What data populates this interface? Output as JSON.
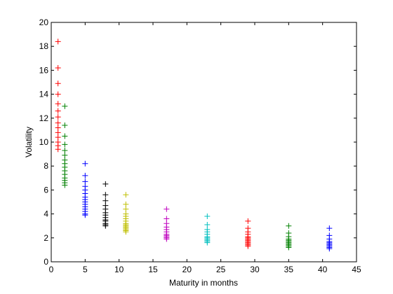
{
  "chart_data": {
    "type": "scatter",
    "xlabel": "Maturity in months",
    "ylabel": "Volatility",
    "xlim": [
      0,
      45
    ],
    "ylim": [
      0,
      20
    ],
    "xticks": [
      0,
      5,
      10,
      15,
      20,
      25,
      30,
      35,
      40,
      45
    ],
    "yticks": [
      0,
      2,
      4,
      6,
      8,
      10,
      12,
      14,
      16,
      18,
      20
    ],
    "grid": false,
    "marker": "+",
    "series": [
      {
        "color": "#ff0000",
        "x": 1,
        "y": [
          18.4,
          16.2,
          14.9,
          14.0,
          13.2,
          12.6,
          12.1,
          11.6,
          11.2,
          10.8,
          10.4,
          10.0,
          9.7,
          9.4
        ]
      },
      {
        "color": "#008000",
        "x": 2,
        "y": [
          13.0,
          11.4,
          10.5,
          9.8,
          9.3,
          8.9,
          8.5,
          8.2,
          7.9,
          7.6,
          7.3,
          7.0,
          6.8,
          6.6,
          6.4
        ]
      },
      {
        "color": "#0000ff",
        "x": 5,
        "y": [
          8.2,
          7.2,
          6.7,
          6.3,
          6.0,
          5.7,
          5.4,
          5.2,
          5.0,
          4.8,
          4.6,
          4.4,
          4.2,
          4.0,
          3.9
        ]
      },
      {
        "color": "#000000",
        "x": 8,
        "y": [
          6.5,
          5.6,
          5.1,
          4.7,
          4.4,
          4.1,
          3.9,
          3.7,
          3.5,
          3.4,
          3.2,
          3.1,
          3.0
        ]
      },
      {
        "color": "#bfbf00",
        "x": 11,
        "y": [
          5.6,
          4.8,
          4.4,
          4.0,
          3.8,
          3.6,
          3.4,
          3.2,
          3.1,
          3.0,
          2.9,
          2.8,
          2.7,
          2.6,
          2.5
        ]
      },
      {
        "color": "#bf00bf",
        "x": 17,
        "y": [
          4.4,
          3.6,
          3.2,
          2.9,
          2.7,
          2.5,
          2.3,
          2.2,
          2.1,
          2.0,
          1.9
        ]
      },
      {
        "color": "#00bfbf",
        "x": 23,
        "y": [
          3.8,
          3.1,
          2.7,
          2.5,
          2.3,
          2.1,
          2.0,
          1.9,
          1.8,
          1.7,
          1.6
        ]
      },
      {
        "color": "#ff0000",
        "x": 29,
        "y": [
          3.4,
          2.8,
          2.5,
          2.3,
          2.1,
          2.0,
          1.9,
          1.8,
          1.7,
          1.6,
          1.5,
          1.4,
          1.3
        ]
      },
      {
        "color": "#008000",
        "x": 35,
        "y": [
          3.0,
          2.4,
          2.1,
          1.9,
          1.8,
          1.7,
          1.6,
          1.5,
          1.4,
          1.3,
          1.2
        ]
      },
      {
        "color": "#0000ff",
        "x": 41,
        "y": [
          2.8,
          2.2,
          1.9,
          1.7,
          1.6,
          1.5,
          1.4,
          1.3,
          1.2,
          1.1
        ]
      }
    ]
  }
}
